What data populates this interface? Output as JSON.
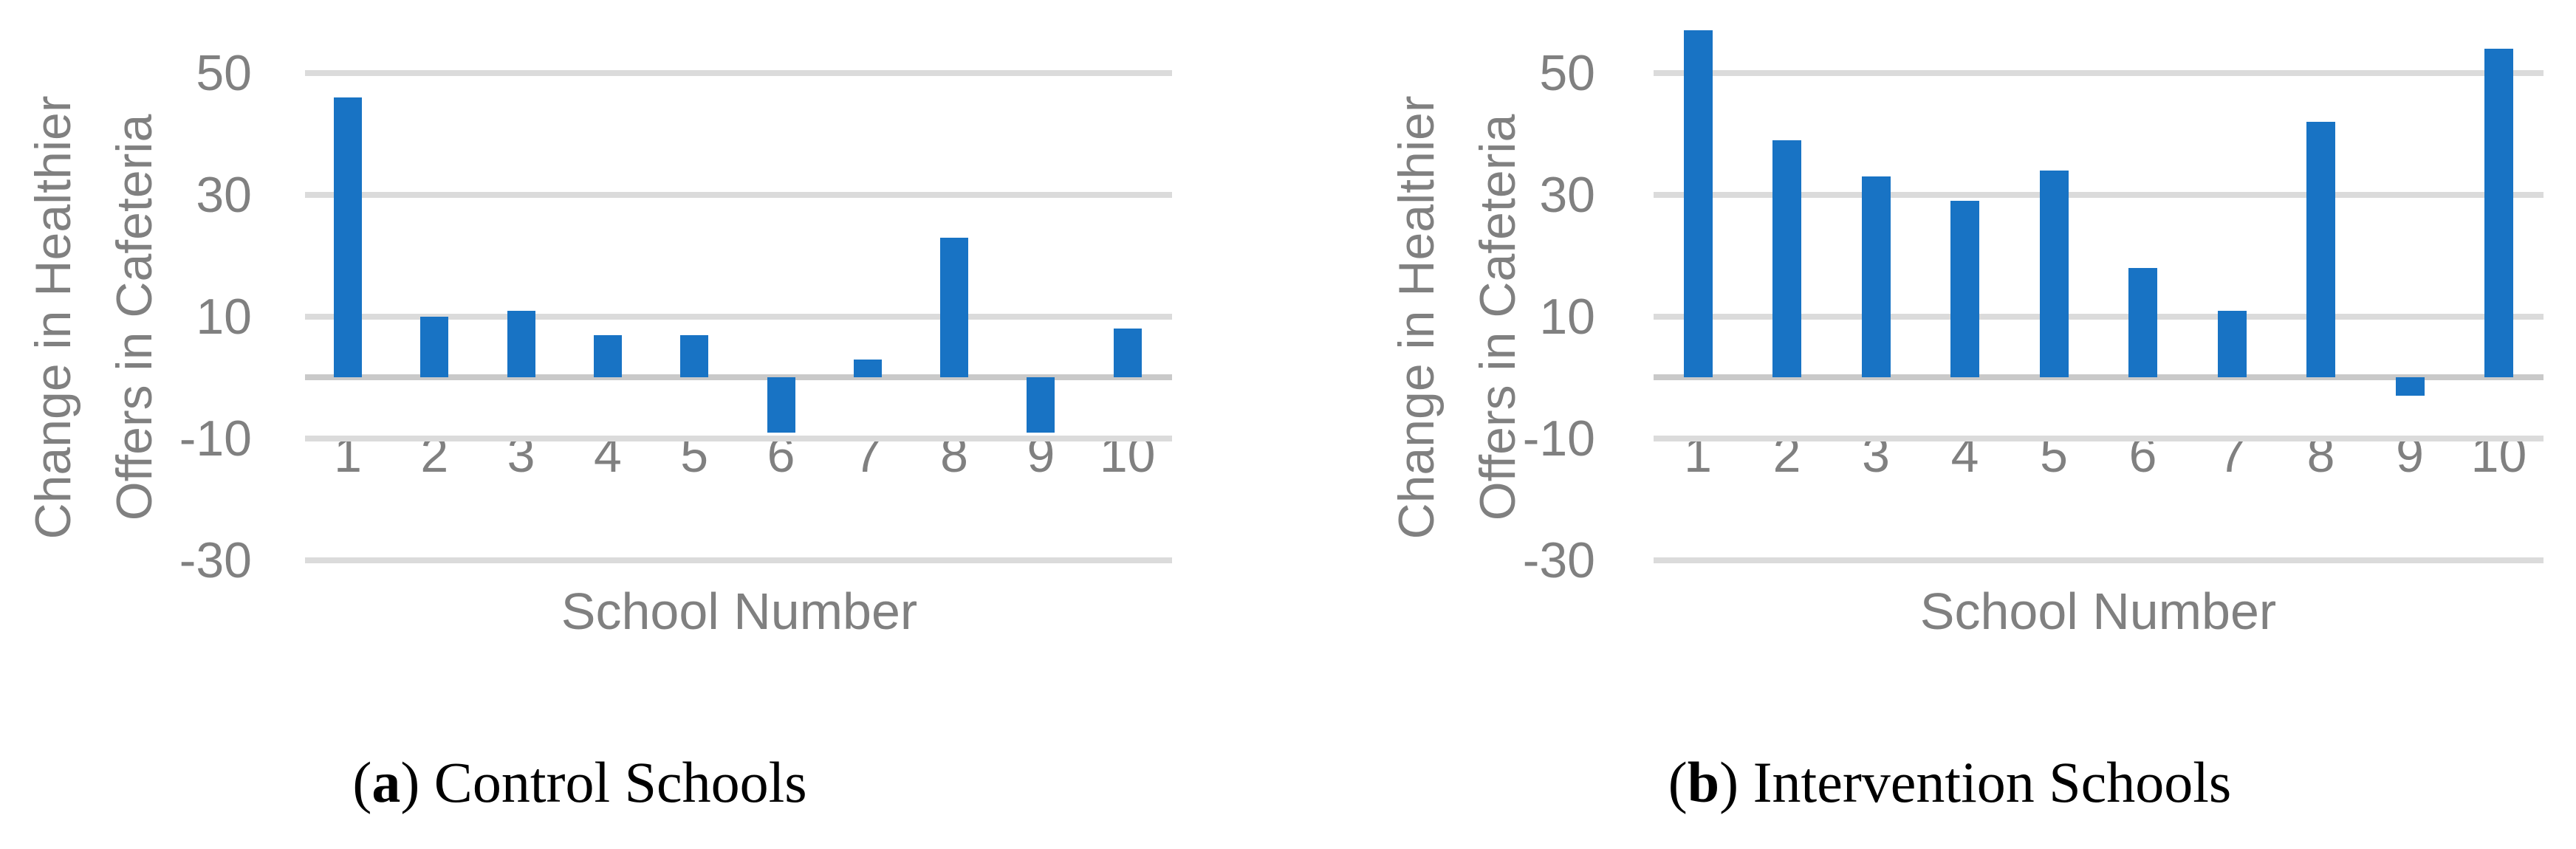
{
  "figure": {
    "background": "#ffffff",
    "colors": {
      "bar": "#1873C4",
      "gridline": "#DBDBDB",
      "zero_axis": "#C9C9C9",
      "axis_text": "#808080",
      "caption_text": "#000000"
    }
  },
  "chart_data": [
    {
      "type": "bar",
      "title": "(a) Control Schools",
      "categories": [
        "1",
        "2",
        "3",
        "4",
        "5",
        "6",
        "7",
        "8",
        "9",
        "10"
      ],
      "values": [
        46,
        10,
        11,
        7,
        7,
        -9,
        3,
        23,
        -9,
        8
      ],
      "xlabel": "School Number",
      "ylabel_line1": "Change in Healthier",
      "ylabel_line2": "Offers in Cafeteria",
      "ylim": [
        -30,
        60
      ],
      "yticks": [
        50,
        30,
        10,
        -10,
        -30
      ],
      "ytick_labels": [
        "50",
        "30",
        "10",
        "-10",
        "-30"
      ],
      "grid": true,
      "legend": "none",
      "caption": {
        "pre": "(",
        "letter": "a",
        "post": ") ",
        "text": "Control Schools"
      }
    },
    {
      "type": "bar",
      "title": "(b) Intervention Schools",
      "categories": [
        "1",
        "2",
        "3",
        "4",
        "5",
        "6",
        "7",
        "8",
        "9",
        "10"
      ],
      "values": [
        57,
        39,
        33,
        29,
        34,
        18,
        11,
        42,
        -3,
        54
      ],
      "xlabel": "School Number",
      "ylabel_line1": "Change in Healthier",
      "ylabel_line2": "Offers in Cafeteria",
      "ylim": [
        -30,
        60
      ],
      "yticks": [
        50,
        30,
        10,
        -10,
        -30
      ],
      "ytick_labels": [
        "50",
        "30",
        "10",
        "-10",
        "-30"
      ],
      "grid": true,
      "legend": "none",
      "caption": {
        "pre": "(",
        "letter": "b",
        "post": ") ",
        "text": "Intervention Schools"
      }
    }
  ]
}
